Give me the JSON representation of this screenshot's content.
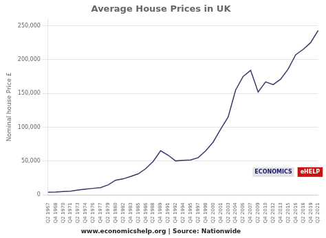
{
  "chart_data": {
    "type": "line",
    "title": "Average House Prices in UK",
    "y_label": "Nominal house Price £",
    "annotations": [
      "www.economicshelp.org | Source: Nationwide",
      "ECONOMICS",
      "eHELP"
    ],
    "categories": [
      "Q2 1967",
      "Q4 1968",
      "Q2 1970",
      "Q4 1971",
      "Q2 1973",
      "Q4 1974",
      "Q2 1976",
      "Q4 1977",
      "Q2 1979",
      "Q4 1980",
      "Q2 1982",
      "Q4 1983",
      "Q2 1985",
      "Q4 1986",
      "Q2 1988",
      "Q4 1989",
      "Q2 1991",
      "Q4 1992",
      "Q2 1994",
      "Q4 1995",
      "Q2 1997",
      "Q4 1998",
      "Q2 2000",
      "Q4 2001",
      "Q2 2003",
      "Q4 2004",
      "Q2 2006",
      "Q4 2007",
      "Q2 2009",
      "Q4 2010",
      "Q2 2012",
      "Q4 2013",
      "Q2 2015",
      "Q4 2016",
      "Q2 2018",
      "Q4 2019",
      "Q2 2021"
    ],
    "values": [
      4057,
      4340,
      4975,
      5632,
      7374,
      8491,
      9703,
      10916,
      14722,
      21822,
      23645,
      27234,
      31103,
      38695,
      49355,
      65229,
      58695,
      50247,
      51085,
      51609,
      55000,
      65000,
      78000,
      97000,
      115000,
      155000,
      175000,
      184000,
      152000,
      167000,
      163000,
      171000,
      186000,
      207000,
      215000,
      225000,
      243000
    ],
    "color": "#3d3566",
    "ylim": [
      0,
      260000
    ],
    "yticks": [
      0,
      {
        "value": 50000,
        "label": "50,000"
      },
      {
        "value": 100000,
        "label": "100,000"
      },
      {
        "value": 150000,
        "label": "150,000"
      },
      {
        "value": 200000,
        "label": "200,000"
      },
      {
        "value": 250000,
        "label": "250,000"
      }
    ],
    "grid": true
  }
}
